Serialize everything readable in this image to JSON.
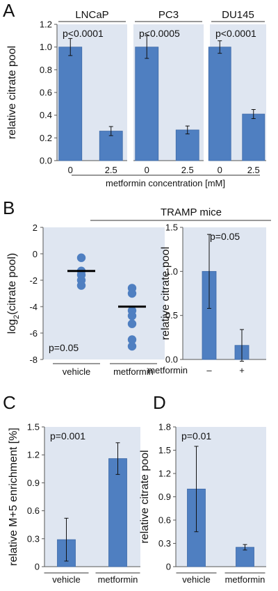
{
  "chart_data": [
    {
      "id": "A1",
      "type": "bar",
      "panel_label": "A",
      "title": "LNCaP",
      "ylabel": "relative citrate pool",
      "ylim": [
        0,
        1.2
      ],
      "yticks": [
        "0.0",
        "0.2",
        "0.4",
        "0.6",
        "0.8",
        "1.0",
        "1.2"
      ],
      "categories": [
        "0",
        "2.5"
      ],
      "values": [
        1.0,
        0.26
      ],
      "errors": [
        0.075,
        0.04
      ],
      "annotation": "p<0.0001"
    },
    {
      "id": "A2",
      "type": "bar",
      "title": "PC3",
      "ylim": [
        0,
        1.2
      ],
      "categories": [
        "0",
        "2.5"
      ],
      "values": [
        1.0,
        0.27
      ],
      "errors": [
        0.1,
        0.035
      ],
      "annotation": "p<0.0005"
    },
    {
      "id": "A3",
      "type": "bar",
      "title": "DU145",
      "ylim": [
        0,
        1.2
      ],
      "categories": [
        "0",
        "2.5"
      ],
      "values": [
        1.0,
        0.41
      ],
      "errors": [
        0.055,
        0.04
      ],
      "annotation": "p<0.0001",
      "group_label": "metformin concentration [mM]"
    },
    {
      "id": "B1",
      "type": "scatter",
      "panel_label": "B",
      "title": "TRAMP mice",
      "ylabel_main": "log",
      "ylabel_sub": "2",
      "ylabel_rest": "(citrate pool)",
      "ylim": [
        -8,
        2
      ],
      "yticks": [
        "-8",
        "-6",
        "-4",
        "-2",
        "0",
        "2"
      ],
      "categories": [
        "vehicle",
        "metformin"
      ],
      "series": [
        {
          "category": "vehicle",
          "points": [
            -0.3,
            -1.3,
            -1.6,
            -2.0,
            -2.4
          ],
          "mean": -1.3
        },
        {
          "category": "metformin",
          "points": [
            -2.6,
            -3.0,
            -4.3,
            -4.7,
            -5.3,
            -6.5,
            -7.0
          ],
          "mean": -4.0
        }
      ],
      "annotation": "p=0.05"
    },
    {
      "id": "B2",
      "type": "bar",
      "ylabel": "relative citrate pool",
      "ylim": [
        0,
        1.5
      ],
      "yticks": [
        "0.0",
        "0.5",
        "1.0",
        "1.5"
      ],
      "x_prefix": "metformin",
      "categories": [
        "–",
        "+"
      ],
      "values": [
        1.0,
        0.16
      ],
      "errors": [
        0.42,
        0.18
      ],
      "annotation": "p=0.05"
    },
    {
      "id": "C",
      "type": "bar",
      "panel_label": "C",
      "ylabel": "relative M+5 enrichment [%]",
      "ylim": [
        0,
        1.5
      ],
      "yticks": [
        "0",
        "0.3",
        "0.6",
        "0.9",
        "1.2",
        "1.5"
      ],
      "categories": [
        "vehicle",
        "metformin"
      ],
      "values": [
        0.29,
        1.16
      ],
      "errors": [
        0.23,
        0.17
      ],
      "annotation": "p=0.001"
    },
    {
      "id": "D",
      "type": "bar",
      "panel_label": "D",
      "ylabel": "relative citrate pool",
      "ylim": [
        0,
        1.8
      ],
      "yticks": [
        "0",
        "0.3",
        "0.6",
        "0.9",
        "1.2",
        "1.5",
        "1.8"
      ],
      "categories": [
        "vehicle",
        "metformin"
      ],
      "values": [
        1.0,
        0.25
      ],
      "errors": [
        0.55,
        0.035
      ],
      "annotation": "p=0.01"
    }
  ]
}
